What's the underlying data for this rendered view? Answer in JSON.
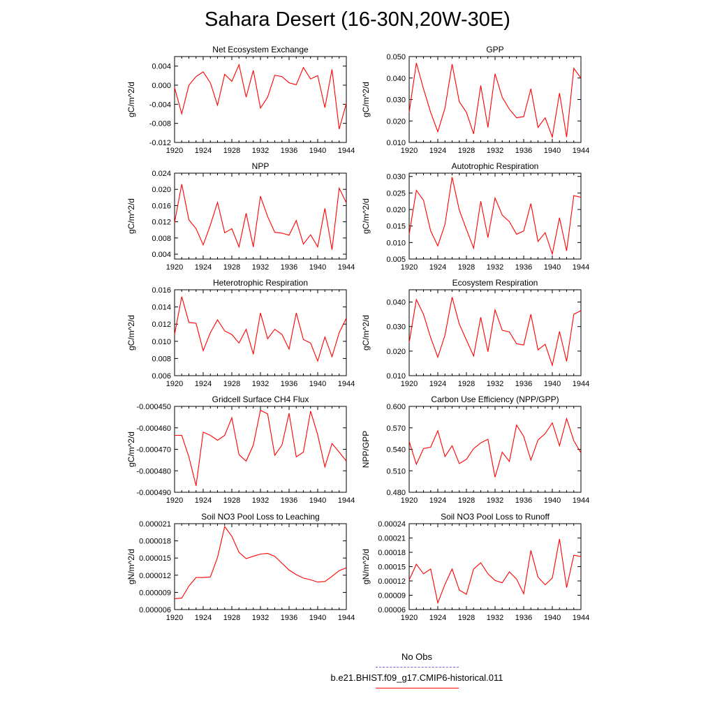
{
  "page": {
    "title": "Sahara Desert (16-30N,20W-30E)"
  },
  "colors": {
    "model": "#ff0000",
    "obs": "#6666ee",
    "axis": "#000000"
  },
  "legend": {
    "obs_label": "No Obs",
    "model_label": "b.e21.BHIST.f09_g17.CMIP6-historical.011"
  },
  "chart_data": [
    {
      "type": "line",
      "title": "Net Ecosystem Exchange",
      "ylabel": "gC/m^2/d",
      "xlim": [
        1920,
        1944
      ],
      "ylim": [
        -0.012,
        0.006
      ],
      "yticks": [
        "0.004",
        "0.000",
        "-0.004",
        "-0.008",
        "-0.012"
      ],
      "ytick_values": [
        0.004,
        0.0,
        -0.004,
        -0.008,
        -0.012
      ],
      "xticks": [
        "1920",
        "1924",
        "1928",
        "1932",
        "1936",
        "1940",
        "1944"
      ],
      "series": [
        {
          "x": [
            1920,
            1921,
            1922,
            1923,
            1924,
            1925,
            1926,
            1927,
            1928,
            1929,
            1930,
            1931,
            1932,
            1933,
            1934,
            1935,
            1936,
            1937,
            1938,
            1939,
            1940,
            1941,
            1942,
            1943,
            1944
          ],
          "values": [
            -0.0005,
            -0.006,
            0.0,
            0.0018,
            0.0028,
            0.0005,
            -0.0042,
            0.0023,
            0.0008,
            0.0043,
            -0.0025,
            0.0031,
            -0.0048,
            -0.0025,
            0.0021,
            0.0018,
            0.0005,
            0.0001,
            0.0037,
            0.0013,
            0.002,
            -0.0047,
            0.0033,
            -0.0092,
            -0.0038
          ]
        }
      ]
    },
    {
      "type": "line",
      "title": "GPP",
      "ylabel": "gC/m^2/d",
      "xlim": [
        1920,
        1944
      ],
      "ylim": [
        0.01,
        0.05
      ],
      "yticks": [
        "0.050",
        "0.040",
        "0.030",
        "0.020",
        "0.010"
      ],
      "ytick_values": [
        0.05,
        0.04,
        0.03,
        0.02,
        0.01
      ],
      "xticks": [
        "1920",
        "1924",
        "1928",
        "1932",
        "1936",
        "1940",
        "1944"
      ],
      "series": [
        {
          "x": [
            1920,
            1921,
            1922,
            1923,
            1924,
            1925,
            1926,
            1927,
            1928,
            1929,
            1930,
            1931,
            1932,
            1933,
            1934,
            1935,
            1936,
            1937,
            1938,
            1939,
            1940,
            1941,
            1942,
            1943,
            1944
          ],
          "values": [
            0.024,
            0.047,
            0.035,
            0.024,
            0.015,
            0.026,
            0.0465,
            0.029,
            0.024,
            0.014,
            0.0365,
            0.017,
            0.042,
            0.031,
            0.0255,
            0.0215,
            0.022,
            0.035,
            0.017,
            0.0215,
            0.0125,
            0.033,
            0.0125,
            0.0445,
            0.04
          ]
        }
      ]
    },
    {
      "type": "line",
      "title": "NPP",
      "ylabel": "gC/m^2/d",
      "xlim": [
        1920,
        1944
      ],
      "ylim": [
        0.0028,
        0.024
      ],
      "yticks": [
        "0.024",
        "0.020",
        "0.016",
        "0.012",
        "0.008",
        "0.004"
      ],
      "ytick_values": [
        0.024,
        0.02,
        0.016,
        0.012,
        0.008,
        0.004
      ],
      "xticks": [
        "1920",
        "1924",
        "1928",
        "1932",
        "1936",
        "1940",
        "1944"
      ],
      "series": [
        {
          "x": [
            1920,
            1921,
            1922,
            1923,
            1924,
            1925,
            1926,
            1927,
            1928,
            1929,
            1930,
            1931,
            1932,
            1933,
            1934,
            1935,
            1936,
            1937,
            1938,
            1939,
            1940,
            1941,
            1942,
            1943,
            1944
          ],
          "values": [
            0.0118,
            0.0213,
            0.0125,
            0.0103,
            0.0063,
            0.0112,
            0.0168,
            0.0093,
            0.0103,
            0.0058,
            0.0141,
            0.0058,
            0.0183,
            0.0133,
            0.0094,
            0.0092,
            0.0087,
            0.0123,
            0.0065,
            0.0088,
            0.0058,
            0.0153,
            0.0051,
            0.0203,
            0.0167
          ]
        }
      ]
    },
    {
      "type": "line",
      "title": "Autotrophic Respiration",
      "ylabel": "gC/m^2/d",
      "xlim": [
        1920,
        1944
      ],
      "ylim": [
        0.005,
        0.031
      ],
      "yticks": [
        "0.030",
        "0.025",
        "0.020",
        "0.015",
        "0.010",
        "0.005"
      ],
      "ytick_values": [
        0.03,
        0.025,
        0.02,
        0.015,
        0.01,
        0.005
      ],
      "xticks": [
        "1920",
        "1924",
        "1928",
        "1932",
        "1936",
        "1940",
        "1944"
      ],
      "series": [
        {
          "x": [
            1920,
            1921,
            1922,
            1923,
            1924,
            1925,
            1926,
            1927,
            1928,
            1929,
            1930,
            1931,
            1932,
            1933,
            1934,
            1935,
            1936,
            1937,
            1938,
            1939,
            1940,
            1941,
            1942,
            1943,
            1944
          ],
          "values": [
            0.0125,
            0.0258,
            0.0228,
            0.0135,
            0.009,
            0.0155,
            0.0298,
            0.0198,
            0.014,
            0.0083,
            0.0225,
            0.0115,
            0.0235,
            0.0183,
            0.0163,
            0.0125,
            0.0135,
            0.0218,
            0.0103,
            0.013,
            0.0065,
            0.0175,
            0.0075,
            0.0242,
            0.0237
          ]
        }
      ]
    },
    {
      "type": "line",
      "title": "Heterotrophic Respiration",
      "ylabel": "gC/m^2/d",
      "xlim": [
        1920,
        1944
      ],
      "ylim": [
        0.006,
        0.016
      ],
      "yticks": [
        "0.016",
        "0.014",
        "0.012",
        "0.010",
        "0.008",
        "0.006"
      ],
      "ytick_values": [
        0.016,
        0.014,
        0.012,
        0.01,
        0.008,
        0.006
      ],
      "xticks": [
        "1920",
        "1924",
        "1928",
        "1932",
        "1936",
        "1940",
        "1944"
      ],
      "series": [
        {
          "x": [
            1920,
            1921,
            1922,
            1923,
            1924,
            1925,
            1926,
            1927,
            1928,
            1929,
            1930,
            1931,
            1932,
            1933,
            1934,
            1935,
            1936,
            1937,
            1938,
            1939,
            1940,
            1941,
            1942,
            1943,
            1944
          ],
          "values": [
            0.0108,
            0.0152,
            0.0122,
            0.0121,
            0.0089,
            0.011,
            0.0125,
            0.0112,
            0.0108,
            0.0098,
            0.0114,
            0.0085,
            0.0133,
            0.0103,
            0.0114,
            0.0108,
            0.0091,
            0.0133,
            0.0102,
            0.0098,
            0.0077,
            0.0105,
            0.0082,
            0.011,
            0.0127
          ]
        }
      ]
    },
    {
      "type": "line",
      "title": "Ecosystem Respiration",
      "ylabel": "gC/m^2/d",
      "xlim": [
        1920,
        1944
      ],
      "ylim": [
        0.01,
        0.045
      ],
      "yticks": [
        "0.040",
        "0.030",
        "0.020",
        "0.010"
      ],
      "ytick_values": [
        0.04,
        0.03,
        0.02,
        0.01
      ],
      "xticks": [
        "1920",
        "1924",
        "1928",
        "1932",
        "1936",
        "1940",
        "1944"
      ],
      "series": [
        {
          "x": [
            1920,
            1921,
            1922,
            1923,
            1924,
            1925,
            1926,
            1927,
            1928,
            1929,
            1930,
            1931,
            1932,
            1933,
            1934,
            1935,
            1936,
            1937,
            1938,
            1939,
            1940,
            1941,
            1942,
            1943,
            1944
          ],
          "values": [
            0.0235,
            0.041,
            0.035,
            0.0255,
            0.0175,
            0.0265,
            0.042,
            0.031,
            0.0245,
            0.018,
            0.0338,
            0.0198,
            0.0368,
            0.0285,
            0.0278,
            0.023,
            0.0225,
            0.035,
            0.0205,
            0.0228,
            0.0142,
            0.028,
            0.0158,
            0.035,
            0.0365
          ]
        }
      ]
    },
    {
      "type": "line",
      "title": "Gridcell Surface CH4 Flux",
      "ylabel": "gC/m^2/d",
      "xlim": [
        1920,
        1944
      ],
      "ylim": [
        -0.00049,
        -0.00045
      ],
      "yticks": [
        "-0.000450",
        "-0.000460",
        "-0.000470",
        "-0.000480",
        "-0.000490"
      ],
      "ytick_values": [
        -0.00045,
        -0.00046,
        -0.00047,
        -0.00048,
        -0.00049
      ],
      "xticks": [
        "1920",
        "1924",
        "1928",
        "1932",
        "1936",
        "1940",
        "1944"
      ],
      "series": [
        {
          "x": [
            1920,
            1921,
            1922,
            1923,
            1924,
            1925,
            1926,
            1927,
            1928,
            1929,
            1930,
            1931,
            1932,
            1933,
            1934,
            1935,
            1936,
            1937,
            1938,
            1939,
            1940,
            1941,
            1942,
            1943,
            1944
          ],
          "values": [
            -0.0004635,
            -0.0004635,
            -0.0004735,
            -0.000487,
            -0.000462,
            -0.0004635,
            -0.0004658,
            -0.0004635,
            -0.0004553,
            -0.0004725,
            -0.0004755,
            -0.000468,
            -0.0004518,
            -0.0004535,
            -0.0004728,
            -0.000468,
            -0.0004532,
            -0.0004735,
            -0.0004713,
            -0.0004522,
            -0.0004632,
            -0.0004782,
            -0.0004673,
            -0.0004713,
            -0.0004755
          ]
        }
      ]
    },
    {
      "type": "line",
      "title": "Carbon Use Efficiency (NPP/GPP)",
      "ylabel": "NPP/GPP",
      "xlim": [
        1920,
        1944
      ],
      "ylim": [
        0.48,
        0.6
      ],
      "yticks": [
        "0.600",
        "0.570",
        "0.540",
        "0.510",
        "0.480"
      ],
      "ytick_values": [
        0.6,
        0.57,
        0.54,
        0.51,
        0.48
      ],
      "xticks": [
        "1920",
        "1924",
        "1928",
        "1932",
        "1936",
        "1940",
        "1944"
      ],
      "series": [
        {
          "x": [
            1920,
            1921,
            1922,
            1923,
            1924,
            1925,
            1926,
            1927,
            1928,
            1929,
            1930,
            1931,
            1932,
            1933,
            1934,
            1935,
            1936,
            1937,
            1938,
            1939,
            1940,
            1941,
            1942,
            1943,
            1944
          ],
          "values": [
            0.551,
            0.519,
            0.541,
            0.543,
            0.566,
            0.53,
            0.545,
            0.52,
            0.526,
            0.541,
            0.549,
            0.554,
            0.501,
            0.536,
            0.523,
            0.574,
            0.558,
            0.525,
            0.553,
            0.562,
            0.577,
            0.545,
            0.583,
            0.552,
            0.535
          ]
        }
      ]
    },
    {
      "type": "line",
      "title": "Soil NO3 Pool Loss to Leaching",
      "ylabel": "gN/m^2/d",
      "xlim": [
        1920,
        1944
      ],
      "ylim": [
        6e-06,
        2.1e-05
      ],
      "yticks": [
        "0.000021",
        "0.000018",
        "0.000015",
        "0.000012",
        "0.000009",
        "0.000006"
      ],
      "ytick_values": [
        2.1e-05,
        1.8e-05,
        1.5e-05,
        1.2e-05,
        9e-06,
        6e-06
      ],
      "xticks": [
        "1920",
        "1924",
        "1928",
        "1932",
        "1936",
        "1940",
        "1944"
      ],
      "series": [
        {
          "x": [
            1920,
            1921,
            1922,
            1923,
            1924,
            1925,
            1926,
            1927,
            1928,
            1929,
            1930,
            1931,
            1932,
            1933,
            1934,
            1935,
            1936,
            1937,
            1938,
            1939,
            1940,
            1941,
            1942,
            1943,
            1944
          ],
          "values": [
            7.9e-06,
            8e-06,
            1.01e-05,
            1.16e-05,
            1.16e-05,
            1.17e-05,
            1.51e-05,
            2.05e-05,
            1.88e-05,
            1.6e-05,
            1.49e-05,
            1.53e-05,
            1.57e-05,
            1.58e-05,
            1.53e-05,
            1.41e-05,
            1.29e-05,
            1.21e-05,
            1.15e-05,
            1.12e-05,
            1.08e-05,
            1.09e-05,
            1.18e-05,
            1.28e-05,
            1.33e-05
          ]
        }
      ]
    },
    {
      "type": "line",
      "title": "Soil NO3 Pool Loss to Runoff",
      "ylabel": "gN/m^2/d",
      "xlim": [
        1920,
        1944
      ],
      "ylim": [
        6e-05,
        0.00024
      ],
      "yticks": [
        "0.00024",
        "0.00021",
        "0.00018",
        "0.00015",
        "0.00012",
        "0.00009",
        "0.00006"
      ],
      "ytick_values": [
        0.00024,
        0.00021,
        0.00018,
        0.00015,
        0.00012,
        9e-05,
        6e-05
      ],
      "xticks": [
        "1920",
        "1924",
        "1928",
        "1932",
        "1936",
        "1940",
        "1944"
      ],
      "series": [
        {
          "x": [
            1920,
            1921,
            1922,
            1923,
            1924,
            1925,
            1926,
            1927,
            1928,
            1929,
            1930,
            1931,
            1932,
            1933,
            1934,
            1935,
            1936,
            1937,
            1938,
            1939,
            1940,
            1941,
            1942,
            1943,
            1944
          ],
          "values": [
            0.000122,
            0.000155,
            0.000135,
            0.000145,
            7.4e-05,
            0.000113,
            0.000145,
            0.000101,
            9.2e-05,
            0.000145,
            0.000158,
            0.000135,
            0.000121,
            0.000116,
            0.000139,
            0.000124,
            9.3e-05,
            0.000184,
            0.000128,
            0.000112,
            0.000126,
            0.000208,
            0.000106,
            0.000174,
            0.000171
          ]
        }
      ]
    }
  ]
}
